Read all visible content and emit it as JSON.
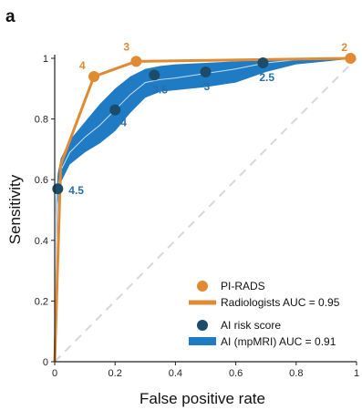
{
  "panel_label": "a",
  "chart_data": {
    "type": "line",
    "xlabel": "False positive rate",
    "ylabel": "Sensitivity",
    "xlim": [
      0,
      1
    ],
    "ylim": [
      0,
      1
    ],
    "x_ticks": [
      "0",
      "0.2",
      "0.4",
      "0.6",
      "0.8",
      "1"
    ],
    "y_ticks": [
      "0",
      "0.2",
      "0.4",
      "0.6",
      "0.8",
      "1"
    ],
    "grid": false,
    "legend_position": "bottom-right",
    "legend": [
      {
        "marker": "circle",
        "color": "#e08a32",
        "text": "PI-RADS"
      },
      {
        "marker": "line",
        "color": "#e08a32",
        "text": "Radiologists AUC = 0.95"
      },
      {
        "marker": "circle",
        "color": "#1b4d6b",
        "text": "AI risk score"
      },
      {
        "marker": "band",
        "color": "#1f7bc4",
        "text": "AI (mpMRI) AUC = 0.91"
      }
    ],
    "chance_line": {
      "x": [
        0,
        1
      ],
      "y": [
        0,
        1
      ],
      "color": "#d8d8d8",
      "dashed": true
    },
    "series": [
      {
        "color": "#e08a32",
        "x": [
          0,
          0.02,
          0.13,
          0.27,
          0.98
        ],
        "y": [
          0,
          0.65,
          0.94,
          0.99,
          1.0
        ],
        "points": [
          {
            "x": 0.13,
            "y": 0.94,
            "label": "4"
          },
          {
            "x": 0.27,
            "y": 0.99,
            "label": "3"
          },
          {
            "x": 0.98,
            "y": 1.0,
            "label": "2"
          }
        ]
      },
      {
        "color": "#c8dff0",
        "band_color": "#1f7bc4",
        "x": [
          0,
          0.005,
          0.01,
          0.02,
          0.05,
          0.1,
          0.15,
          0.2,
          0.25,
          0.3,
          0.35,
          0.4,
          0.5,
          0.6,
          0.7,
          0.8,
          0.9,
          1.0
        ],
        "y": [
          0,
          0.45,
          0.57,
          0.63,
          0.69,
          0.74,
          0.78,
          0.83,
          0.88,
          0.92,
          0.93,
          0.935,
          0.95,
          0.965,
          0.985,
          0.995,
          1.0,
          1.0
        ],
        "upper": [
          0,
          0.53,
          0.62,
          0.67,
          0.73,
          0.79,
          0.85,
          0.9,
          0.94,
          0.965,
          0.975,
          0.98,
          0.985,
          0.99,
          0.995,
          1.0,
          1.0,
          1.0
        ],
        "lower": [
          0,
          0.37,
          0.52,
          0.59,
          0.65,
          0.69,
          0.72,
          0.76,
          0.82,
          0.87,
          0.89,
          0.895,
          0.905,
          0.92,
          0.955,
          0.98,
          0.99,
          1.0
        ],
        "points": [
          {
            "x": 0.01,
            "y": 0.57,
            "label": "4.5"
          },
          {
            "x": 0.2,
            "y": 0.83,
            "label": "4"
          },
          {
            "x": 0.33,
            "y": 0.945,
            "label": "3.5"
          },
          {
            "x": 0.5,
            "y": 0.955,
            "label": "3"
          },
          {
            "x": 0.69,
            "y": 0.985,
            "label": "2.5"
          }
        ]
      }
    ]
  }
}
